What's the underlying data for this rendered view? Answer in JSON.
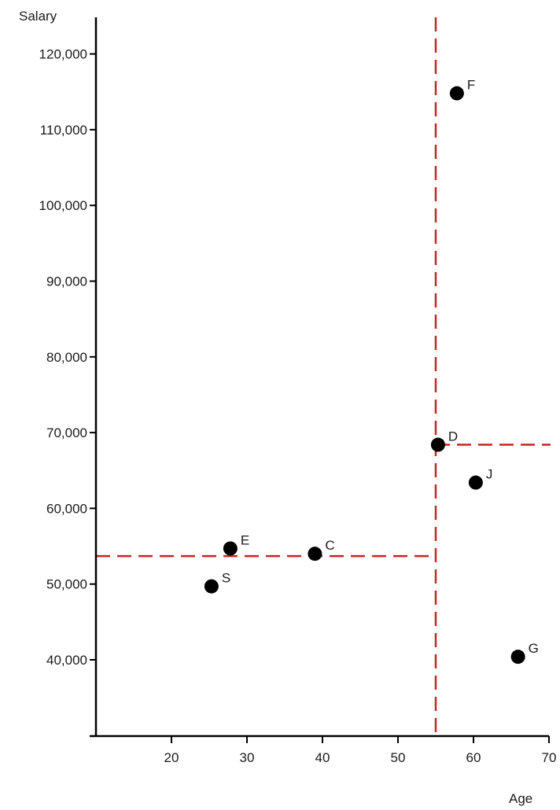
{
  "chart_data": {
    "type": "scatter",
    "title": "",
    "xlabel": "Age",
    "ylabel": "Salary",
    "xlim": [
      10,
      70
    ],
    "ylim": [
      30000,
      125000
    ],
    "x_ticks": [
      20,
      30,
      40,
      50,
      60,
      70
    ],
    "x_tick_labels": [
      "20",
      "30",
      "40",
      "50",
      "60",
      "70"
    ],
    "y_ticks": [
      40000,
      50000,
      60000,
      70000,
      80000,
      90000,
      100000,
      110000,
      120000
    ],
    "y_tick_labels": [
      "40,000",
      "50,000",
      "60,000",
      "70,000",
      "80,000",
      "90,000",
      "100,000",
      "110,000",
      "120,000"
    ],
    "grid": false,
    "points": [
      {
        "label": "F",
        "x": 57.8,
        "y": 114800
      },
      {
        "label": "D",
        "x": 55.3,
        "y": 68400
      },
      {
        "label": "J",
        "x": 60.3,
        "y": 63400
      },
      {
        "label": "E",
        "x": 27.8,
        "y": 54700
      },
      {
        "label": "C",
        "x": 39.0,
        "y": 54000
      },
      {
        "label": "S",
        "x": 25.3,
        "y": 49700
      },
      {
        "label": "G",
        "x": 65.9,
        "y": 40400
      }
    ],
    "reference_lines": [
      {
        "orientation": "vertical",
        "x": 55,
        "y_range": [
          30000,
          125000
        ],
        "color": "#cc2222",
        "style": "dashed"
      },
      {
        "orientation": "horizontal",
        "y": 68400,
        "x_range": [
          55,
          70
        ],
        "color": "#cc2222",
        "style": "dashed"
      },
      {
        "orientation": "horizontal",
        "y": 53700,
        "x_range": [
          10,
          55
        ],
        "color": "#cc2222",
        "style": "dashed"
      }
    ],
    "point_color": "#000000",
    "axis_color": "#000000"
  }
}
